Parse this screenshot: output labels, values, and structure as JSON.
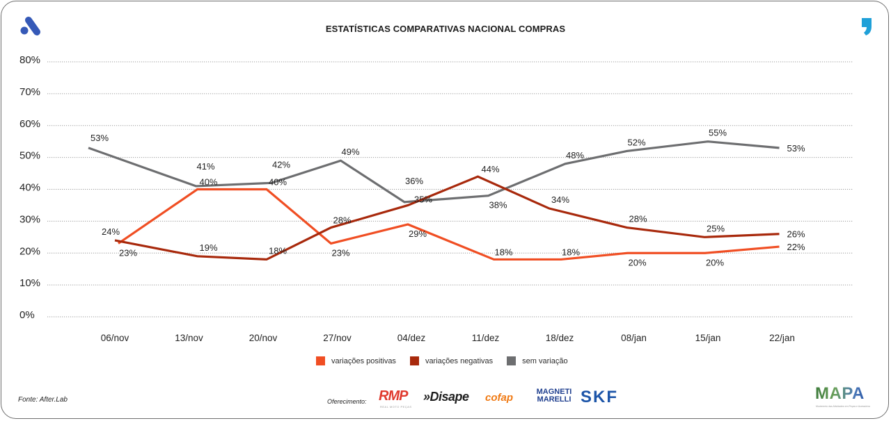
{
  "header": {
    "title": "ESTATÍSTICAS COMPARATIVAS NACIONAL COMPRAS",
    "left_logo": "a-logo-icon",
    "right_logo": "comma-logo-icon"
  },
  "chart_data": {
    "type": "line",
    "title": "ESTATÍSTICAS COMPARATIVAS NACIONAL COMPRAS",
    "xlabel": "",
    "ylabel": "",
    "categories": [
      "06/nov",
      "13/nov",
      "20/nov",
      "27/nov",
      "04/dez",
      "11/dez",
      "18/dez",
      "08/jan",
      "15/jan",
      "22/jan"
    ],
    "yticks": [
      "0%",
      "10%",
      "20%",
      "30%",
      "40%",
      "50%",
      "60%",
      "70%",
      "80%"
    ],
    "ylim": [
      0,
      80
    ],
    "grid": true,
    "legend_position": "bottom",
    "series": [
      {
        "name": "variações positivas",
        "color": "#f04e23",
        "values": [
          23,
          40,
          40,
          23,
          29,
          18,
          18,
          20,
          20,
          22
        ],
        "labels": [
          "23%",
          "40%",
          "40%",
          "23%",
          "29%",
          "18%",
          "18%",
          "20%",
          "20%",
          "22%"
        ]
      },
      {
        "name": "variações negativas",
        "color": "#a8290c",
        "values": [
          24,
          19,
          18,
          28,
          35,
          44,
          34,
          28,
          25,
          26
        ],
        "labels": [
          "24%",
          "19%",
          "18%",
          "28%",
          "35%",
          "44%",
          "34%",
          "28%",
          "25%",
          "26%"
        ]
      },
      {
        "name": "sem variação",
        "color": "#6d6e70",
        "values": [
          53,
          41,
          42,
          49,
          36,
          38,
          48,
          52,
          55,
          53
        ],
        "labels": [
          "53%",
          "41%",
          "42%",
          "49%",
          "36%",
          "38%",
          "48%",
          "52%",
          "55%",
          "53%"
        ]
      }
    ]
  },
  "footer": {
    "source": "Fonte: After.Lab",
    "sponsor_label": "Oferecimento:",
    "sponsors": [
      "RMP",
      "»Disape",
      "cofap",
      "MAGNETI MARELLI",
      "SKF"
    ],
    "rmp_sub": "REAL MOTO PEÇAS",
    "brand": "MAPA",
    "brand_sub": "Movimento das Atividades em Peças e Acessórios"
  }
}
